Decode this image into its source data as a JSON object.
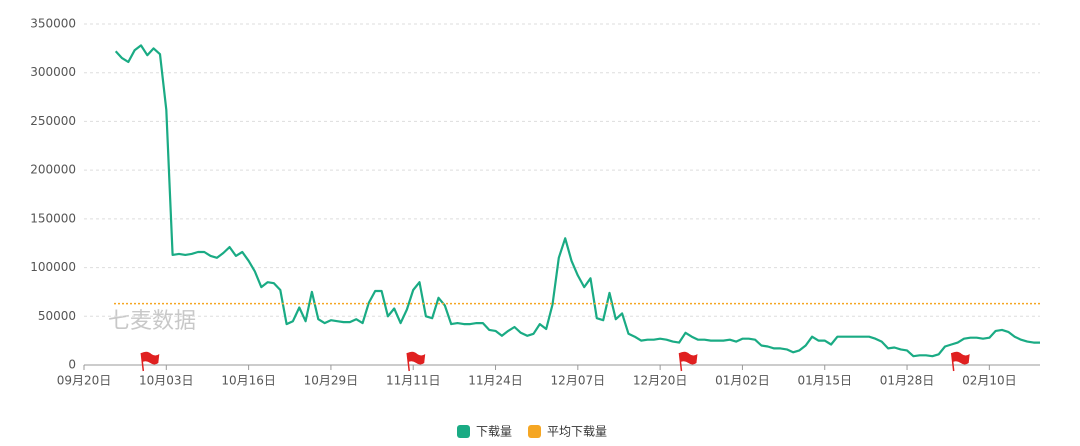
{
  "chart_data": {
    "type": "line",
    "watermark": "七麦数据",
    "categories": [
      "09月20日",
      "09月21日",
      "09月22日",
      "09月23日",
      "09月24日",
      "09月25日",
      "09月26日",
      "09月27日",
      "09月28日",
      "09月29日",
      "09月30日",
      "10月01日",
      "10月02日",
      "10月03日",
      "10月04日",
      "10月05日",
      "10月06日",
      "10月07日",
      "10月08日",
      "10月09日",
      "10月10日",
      "10月11日",
      "10月12日",
      "10月13日",
      "10月14日",
      "10月15日",
      "10月16日",
      "10月17日",
      "10月18日",
      "10月19日",
      "10月20日",
      "10月21日",
      "10月22日",
      "10月23日",
      "10月24日",
      "10月25日",
      "10月26日",
      "10月27日",
      "10月28日",
      "10月29日",
      "10月30日",
      "10月31日",
      "11月01日",
      "11月02日",
      "11月03日",
      "11月04日",
      "11月05日",
      "11月06日",
      "11月07日",
      "11月08日",
      "11月09日",
      "11月10日",
      "11月11日",
      "11月12日",
      "11月13日",
      "11月14日",
      "11月15日",
      "11月16日",
      "11月17日",
      "11月18日",
      "11月19日",
      "11月20日",
      "11月21日",
      "11月22日",
      "11月23日",
      "11月24日",
      "11月25日",
      "11月26日",
      "11月27日",
      "11月28日",
      "11月29日",
      "11月30日",
      "12月01日",
      "12月02日",
      "12月03日",
      "12月04日",
      "12月05日",
      "12月06日",
      "12月07日",
      "12月08日",
      "12月09日",
      "12月10日",
      "12月11日",
      "12月12日",
      "12月13日",
      "12月14日",
      "12月15日",
      "12月16日",
      "12月17日",
      "12月18日",
      "12月19日",
      "12月20日",
      "12月21日",
      "12月22日",
      "12月23日",
      "12月24日",
      "12月25日",
      "12月26日",
      "12月27日",
      "12月28日",
      "12月29日",
      "12月30日",
      "12月31日",
      "01月01日",
      "01月02日",
      "01月03日",
      "01月04日",
      "01月05日",
      "01月06日",
      "01月07日",
      "01月08日",
      "01月09日",
      "01月10日",
      "01月11日",
      "01月12日",
      "01月13日",
      "01月14日",
      "01月15日",
      "01月16日",
      "01月17日",
      "01月18日",
      "01月19日",
      "01月20日",
      "01月21日",
      "01月22日",
      "01月23日",
      "01月24日",
      "01月25日",
      "01月26日",
      "01月27日",
      "01月28日",
      "01月29日",
      "01月30日",
      "01月31日",
      "02月01日",
      "02月02日",
      "02月03日",
      "02月04日",
      "02月05日",
      "02月06日",
      "02月07日",
      "02月08日",
      "02月09日",
      "02月10日",
      "02月11日",
      "02月12日",
      "02月13日",
      "02月14日",
      "02月15日",
      "02月16日",
      "02月17日",
      "02月18日"
    ],
    "series": [
      {
        "name": "下载量",
        "color": "#1aab84",
        "values": [
          null,
          null,
          null,
          null,
          null,
          322000,
          315000,
          311000,
          323000,
          328000,
          318000,
          325000,
          319000,
          262000,
          113000,
          114000,
          113000,
          114000,
          116000,
          116000,
          112000,
          110000,
          115000,
          121000,
          112000,
          116000,
          107000,
          96000,
          80000,
          85000,
          84000,
          77000,
          42000,
          45000,
          59000,
          45000,
          75000,
          47000,
          43000,
          46000,
          45000,
          44000,
          44000,
          47000,
          43000,
          64000,
          76000,
          76000,
          50000,
          58000,
          43000,
          57000,
          77000,
          85000,
          50000,
          48000,
          69000,
          61000,
          42000,
          43000,
          42000,
          42000,
          43000,
          43000,
          36000,
          35000,
          30000,
          35000,
          39000,
          33000,
          30000,
          32000,
          42000,
          37000,
          62000,
          110000,
          130000,
          107000,
          92000,
          80000,
          89000,
          48000,
          46000,
          74000,
          47000,
          53000,
          32000,
          29000,
          25000,
          26000,
          26000,
          27000,
          26000,
          24000,
          23000,
          33000,
          29000,
          26000,
          26000,
          25000,
          25000,
          25000,
          26000,
          24000,
          27000,
          27000,
          26000,
          20000,
          19000,
          17000,
          17000,
          16000,
          13000,
          15000,
          20000,
          29000,
          25000,
          25000,
          21000,
          29000,
          29000,
          29000,
          29000,
          29000,
          29000,
          27000,
          24000,
          17000,
          18000,
          16000,
          15000,
          9000,
          10000,
          10000,
          9000,
          11000,
          19000,
          21000,
          23000,
          27000,
          28000,
          28000,
          27000,
          28000,
          35000,
          36000,
          34000,
          29000,
          26000,
          24000,
          23000,
          23000
        ]
      },
      {
        "name": "平均下载量",
        "color": "#f5a623",
        "average": 63000
      }
    ],
    "flags": [
      "09月30日",
      "11月11日",
      "12月24日",
      "02月05日"
    ],
    "flag_color": "#e02020",
    "ylim": [
      0,
      350000
    ],
    "yticks": [
      0,
      50000,
      100000,
      150000,
      200000,
      250000,
      300000,
      350000
    ],
    "xticks": [
      "09月20日",
      "10月03日",
      "10月16日",
      "10月29日",
      "11月11日",
      "11月24日",
      "12月07日",
      "12月20日",
      "01月02日",
      "01月15日",
      "01月28日",
      "02月10日"
    ],
    "grid": true
  }
}
